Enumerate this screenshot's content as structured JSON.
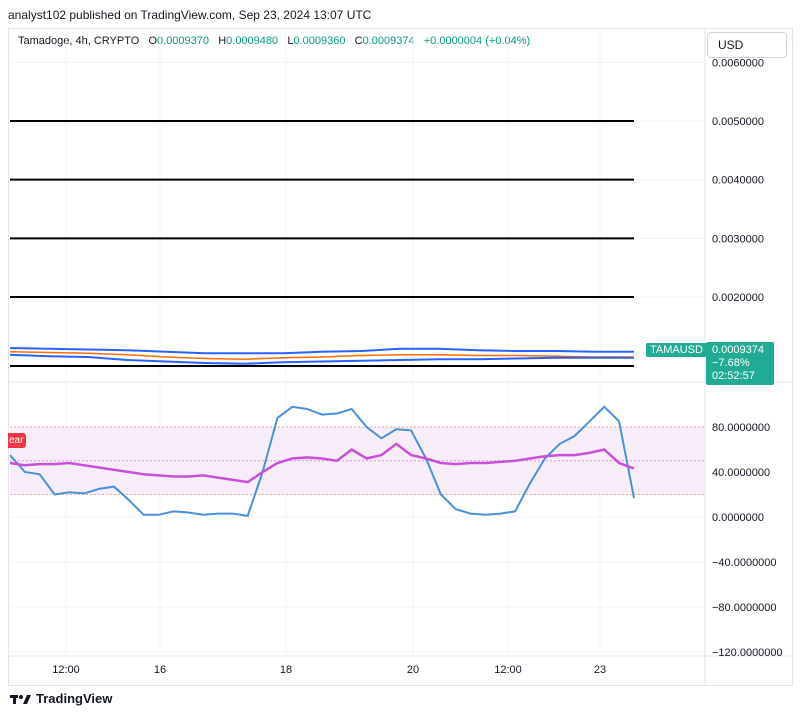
{
  "header": {
    "caption": "analyst102 published on TradingView.com, Sep 23, 2024 13:07 UTC"
  },
  "legend": {
    "symbol": "Tamadoge, 4h, CRYPTO",
    "o_label": "O",
    "o_value": "0.0009370",
    "h_label": "H",
    "h_value": "0.0009480",
    "l_label": "L",
    "l_value": "0.0009360",
    "c_label": "C",
    "c_value": "0.0009374",
    "change": "+0.0000004 (+0.04%)"
  },
  "currency_button": "USD",
  "price_tag": {
    "symbol": "TAMAUSD",
    "price": "0.0009374",
    "change_pct": "−7.68%",
    "countdown": "02:52:57"
  },
  "bear_label": "ear",
  "footer": {
    "logo_text": "TradingView"
  },
  "colors": {
    "up": "#089981",
    "down": "#f23645",
    "bb_band": "#2962ff",
    "ma": "#ff6d00",
    "stoch_k": "#4a90d9",
    "rsi": "#c850d8",
    "tag": "#22ab94"
  },
  "chart_data": [
    {
      "type": "line",
      "title": "Tamadoge, 4h, CRYPTO",
      "y_ticks": [
        "0.0060000",
        "0.0050000",
        "0.0040000",
        "0.0030000",
        "0.0020000"
      ],
      "ylim": [
        0.0007,
        0.0061
      ],
      "x_ticks": [
        "12:00",
        "16",
        "18",
        "20",
        "12:00",
        "23"
      ],
      "horizontal_levels": [
        0.005,
        0.004,
        0.003,
        0.002,
        0.00082
      ],
      "series": [
        {
          "values": [
            0.00101,
            0.001,
            0.00099,
            0.00097,
            0.00094,
            0.00092,
            0.00091,
            0.00093,
            0.00094,
            0.00096,
            0.00097,
            0.00097,
            0.00096,
            0.00096,
            0.00095,
            0.00094,
            0.00094
          ]
        },
        {
          "values": [
            0.00106,
            0.00105,
            0.00104,
            0.00103,
            0.00101,
            0.00099,
            0.00099,
            0.00099,
            0.00101,
            0.00102,
            0.00105,
            0.00105,
            0.00103,
            0.00102,
            0.00102,
            0.00101,
            0.00101
          ]
        },
        {
          "values": [
            0.00097,
            0.00095,
            0.00094,
            0.0009,
            0.00088,
            0.00086,
            0.00085,
            0.00087,
            0.00088,
            0.00089,
            0.0009,
            0.00091,
            0.00091,
            0.00092,
            0.00093,
            0.00093,
            0.00093
          ]
        }
      ]
    },
    {
      "type": "line",
      "y_ticks": [
        "80.0000000",
        "40.0000000",
        "0.0000000",
        "−40.0000000",
        "−80.0000000",
        "−120.0000000"
      ],
      "ylim": [
        -125,
        112
      ],
      "bands": [
        80,
        20
      ],
      "levels": [
        50
      ],
      "series": [
        {
          "values": [
            55,
            40,
            38,
            20,
            22,
            21,
            25,
            27,
            15,
            2,
            2,
            5,
            4,
            2,
            3,
            3,
            1,
            40,
            88,
            98,
            96,
            91,
            92,
            96,
            80,
            70,
            78,
            77,
            52,
            20,
            7,
            3,
            2,
            3,
            5,
            30,
            52,
            65,
            72,
            85,
            98,
            85,
            17
          ]
        },
        {
          "values": [
            48,
            46,
            47,
            47,
            48,
            46,
            44,
            42,
            40,
            38,
            37,
            36,
            36,
            37,
            35,
            33,
            31,
            40,
            48,
            52,
            53,
            52,
            50,
            60,
            52,
            55,
            65,
            55,
            52,
            48,
            47,
            48,
            48,
            49,
            50,
            52,
            54,
            55,
            55,
            57,
            60,
            48,
            43
          ]
        }
      ]
    }
  ]
}
